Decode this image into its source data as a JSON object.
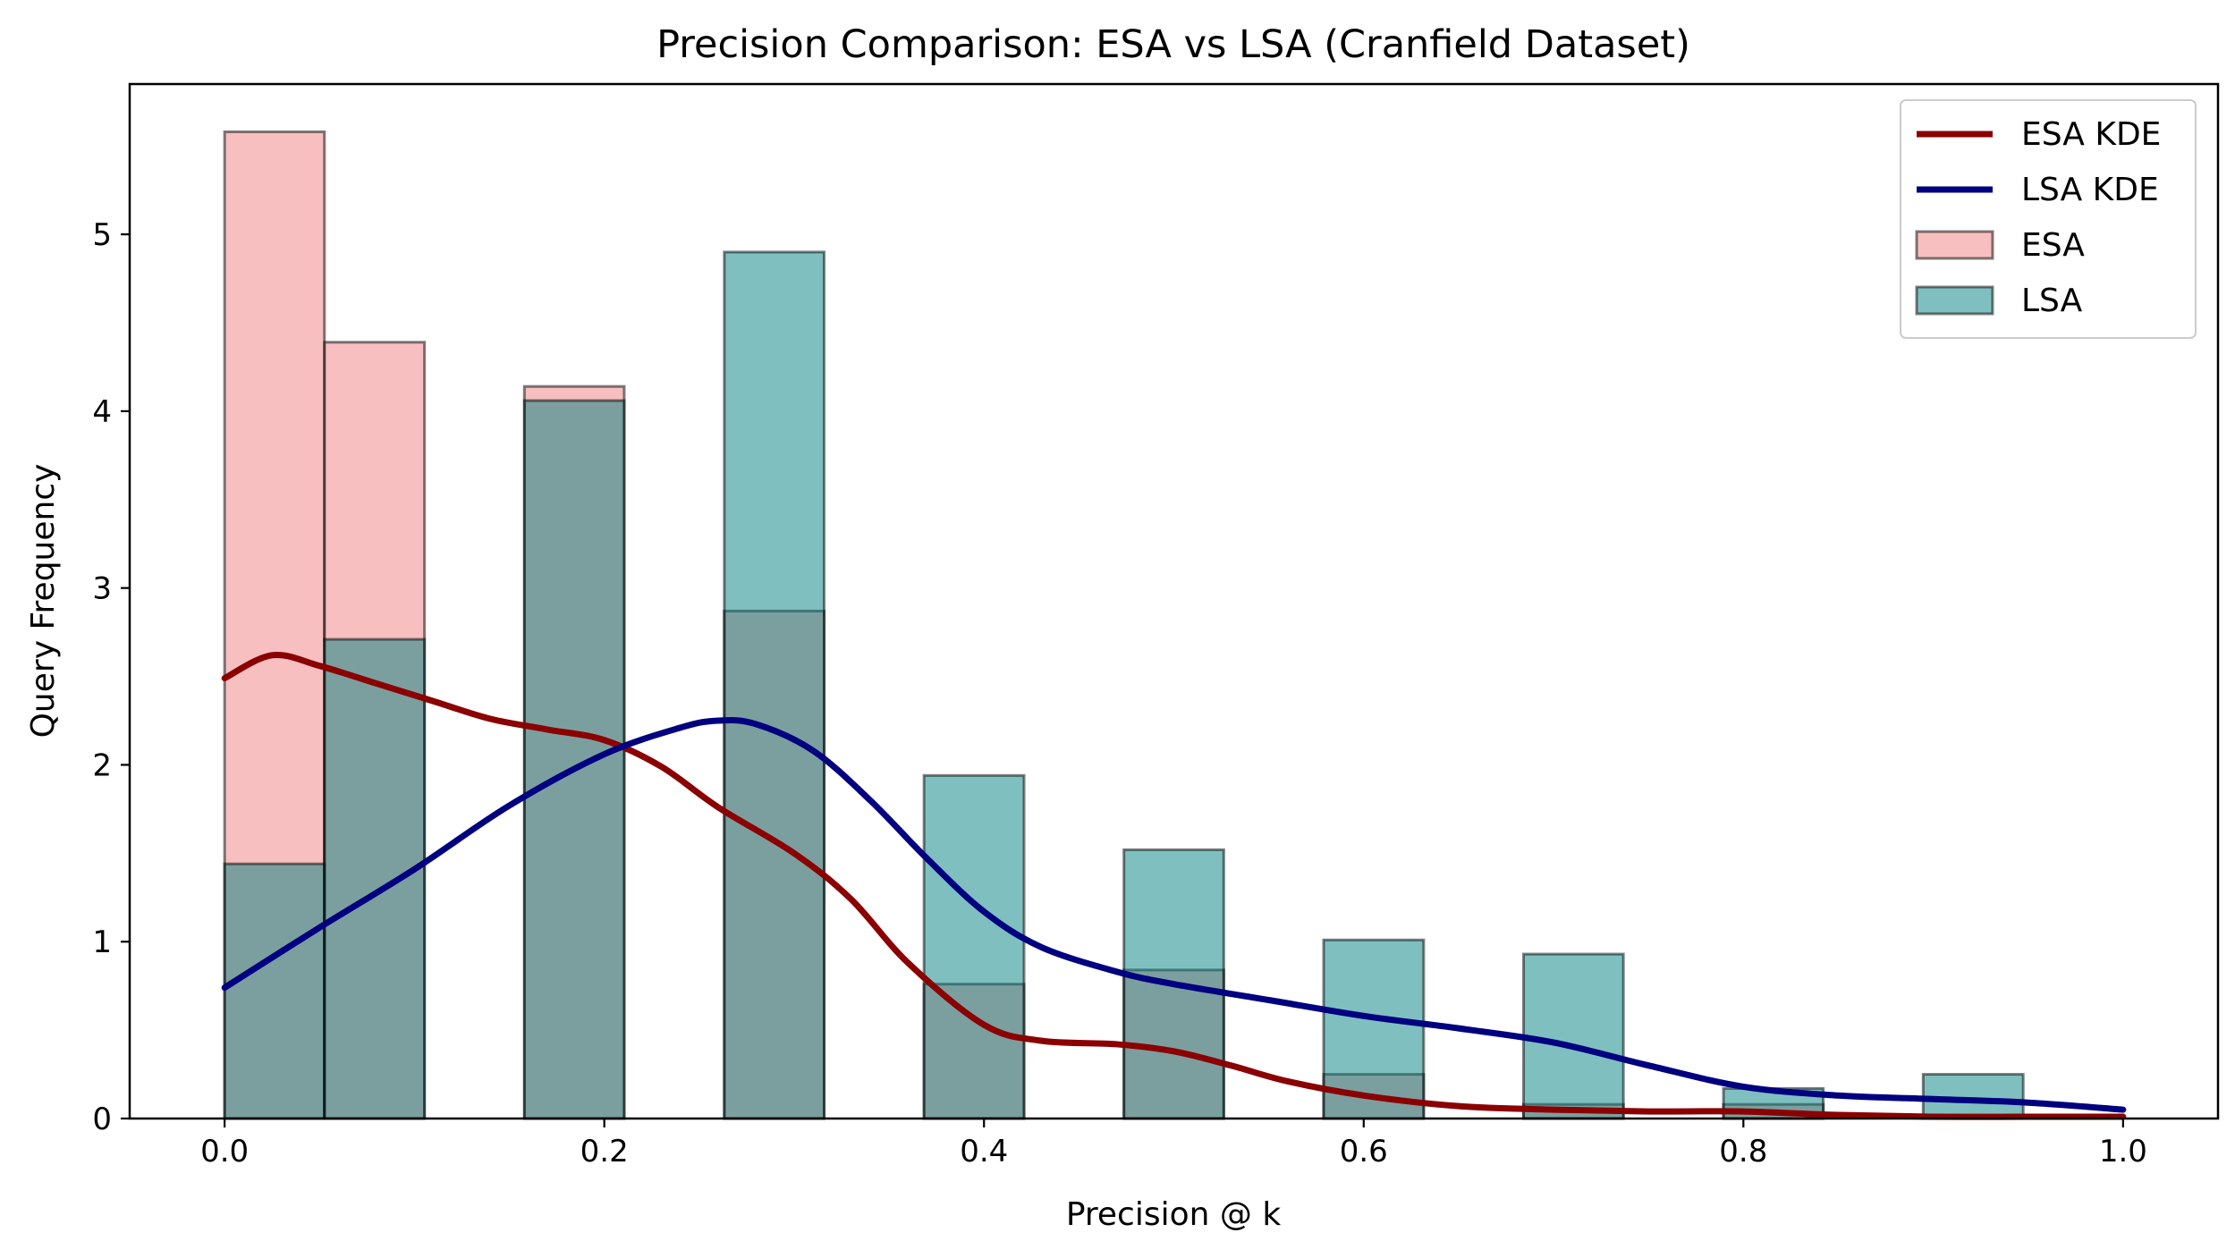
{
  "chart_data": {
    "type": "histogram",
    "title": "Precision Comparison: ESA vs LSA (Cranfield Dataset)",
    "xlabel": "Precision @ k",
    "ylabel": "Query Frequency",
    "xlim": [
      -0.05,
      1.05
    ],
    "ylim": [
      0,
      5.85
    ],
    "xticks": [
      "0.0",
      "0.2",
      "0.4",
      "0.6",
      "0.8",
      "1.0"
    ],
    "yticks": [
      "0",
      "1",
      "2",
      "3",
      "4",
      "5"
    ],
    "bin_edges": [
      0.0,
      0.0526,
      0.1053,
      0.1579,
      0.2105,
      0.2632,
      0.3158,
      0.3684,
      0.4211,
      0.4737,
      0.5263,
      0.5789,
      0.6316,
      0.6842,
      0.7368,
      0.7895,
      0.8421,
      0.8947,
      0.9474,
      1.0
    ],
    "series": [
      {
        "name": "ESA",
        "kind": "bars",
        "color": "#f08080",
        "values": [
          5.58,
          4.39,
          0,
          4.14,
          0,
          2.87,
          0,
          0.76,
          0,
          0.84,
          0,
          0.25,
          0,
          0.08,
          0,
          0.08,
          0,
          0,
          0
        ]
      },
      {
        "name": "LSA",
        "kind": "bars",
        "color": "#008080",
        "values": [
          1.44,
          2.71,
          0,
          4.06,
          0,
          4.9,
          0,
          1.94,
          0,
          1.52,
          0,
          1.01,
          0,
          0.93,
          0,
          0.17,
          0,
          0.25,
          0
        ]
      },
      {
        "name": "ESA KDE",
        "kind": "line",
        "color": "#8b0000",
        "x": [
          0.0,
          0.025,
          0.05,
          0.08,
          0.11,
          0.14,
          0.17,
          0.2,
          0.23,
          0.26,
          0.3,
          0.33,
          0.36,
          0.4,
          0.43,
          0.47,
          0.5,
          0.53,
          0.56,
          0.6,
          0.65,
          0.7,
          0.75,
          0.8,
          0.85,
          0.9,
          0.95,
          1.0
        ],
        "y": [
          2.49,
          2.62,
          2.56,
          2.46,
          2.36,
          2.26,
          2.2,
          2.14,
          1.99,
          1.76,
          1.5,
          1.24,
          0.88,
          0.53,
          0.44,
          0.42,
          0.38,
          0.3,
          0.21,
          0.13,
          0.07,
          0.05,
          0.04,
          0.04,
          0.02,
          0.01,
          0.01,
          0.01
        ]
      },
      {
        "name": "LSA KDE",
        "kind": "line",
        "color": "#000080",
        "x": [
          0.0,
          0.05,
          0.1,
          0.15,
          0.2,
          0.24,
          0.26,
          0.28,
          0.31,
          0.34,
          0.37,
          0.4,
          0.43,
          0.47,
          0.5,
          0.55,
          0.6,
          0.65,
          0.7,
          0.75,
          0.8,
          0.85,
          0.9,
          0.95,
          1.0
        ],
        "y": [
          0.74,
          1.08,
          1.41,
          1.77,
          2.06,
          2.21,
          2.25,
          2.23,
          2.08,
          1.8,
          1.47,
          1.17,
          0.97,
          0.83,
          0.76,
          0.67,
          0.58,
          0.51,
          0.43,
          0.3,
          0.18,
          0.13,
          0.11,
          0.09,
          0.05
        ]
      }
    ],
    "legend": {
      "position": "top-right",
      "entries": [
        {
          "label": "ESA KDE",
          "type": "line",
          "color": "#8b0000"
        },
        {
          "label": "LSA KDE",
          "type": "line",
          "color": "#000080"
        },
        {
          "label": "ESA",
          "type": "patch",
          "color": "#f08080"
        },
        {
          "label": "LSA",
          "type": "patch",
          "color": "#008080"
        }
      ]
    },
    "grid": false
  }
}
